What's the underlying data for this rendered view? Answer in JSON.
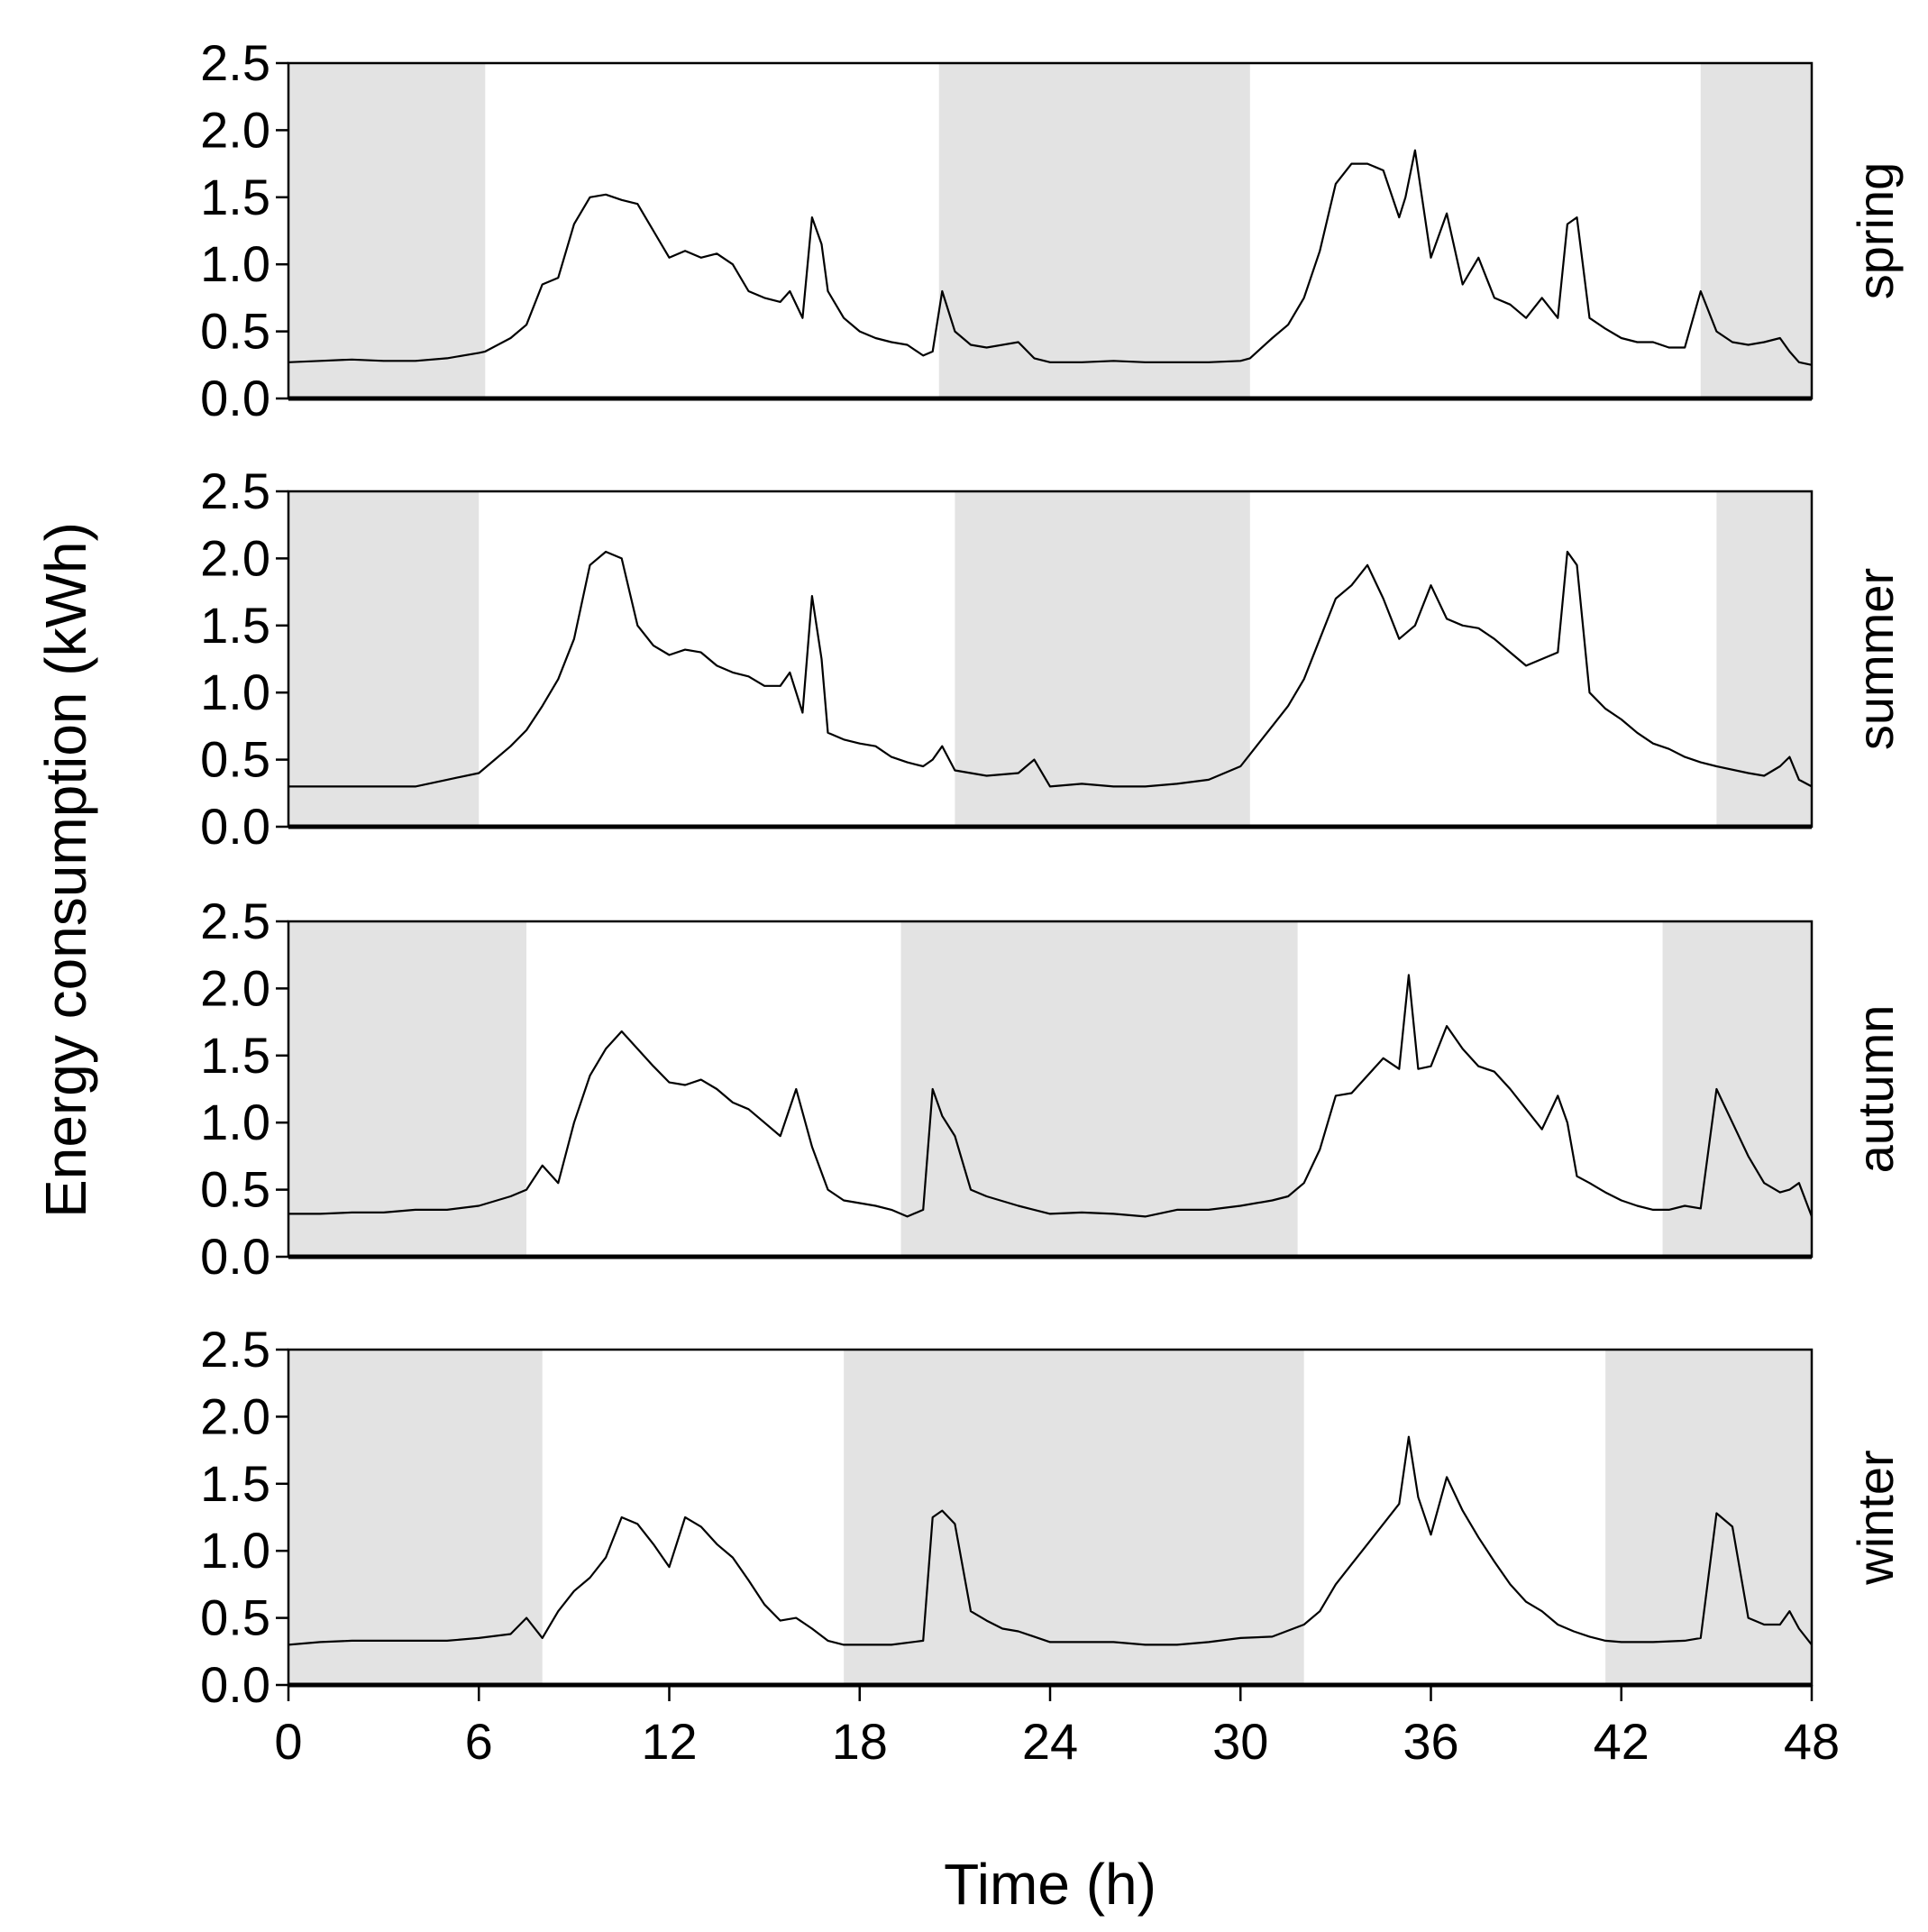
{
  "chart_data": {
    "type": "line",
    "xlabel": "Time (h)",
    "ylabel": "Energy consumption (kWh)",
    "xlim": [
      0,
      48
    ],
    "ylim": [
      0,
      2.5
    ],
    "x_ticks": [
      "0",
      "6",
      "12",
      "18",
      "24",
      "30",
      "36",
      "42",
      "48"
    ],
    "y_ticks": [
      "0.0",
      "0.5",
      "1.0",
      "1.5",
      "2.0",
      "2.5"
    ],
    "colors": {
      "line": "#000000",
      "night_shade": "#e3e3e3",
      "background": "#ffffff"
    },
    "panels": [
      {
        "name": "spring",
        "night_periods": [
          [
            0,
            6.2
          ],
          [
            20.5,
            30.3
          ],
          [
            44.5,
            48
          ]
        ],
        "series": [
          {
            "name": "spring",
            "x": [
              0,
              1,
              2,
              3,
              4,
              5,
              6,
              6.2,
              7,
              7.5,
              8,
              8.5,
              9,
              9.5,
              10,
              10.5,
              11,
              11.5,
              12,
              12.5,
              13,
              13.5,
              14,
              14.5,
              15,
              15.5,
              15.8,
              16.2,
              16.5,
              16.8,
              17,
              17.5,
              18,
              18.5,
              19,
              19.5,
              20,
              20.3,
              20.6,
              21,
              21.5,
              22,
              23,
              23.5,
              24,
              25,
              26,
              27,
              28,
              29,
              30,
              30.3,
              31,
              31.5,
              32,
              32.5,
              33,
              33.5,
              34,
              34.5,
              35,
              35.2,
              35.5,
              36,
              36.5,
              37,
              37.5,
              38,
              38.5,
              39,
              39.5,
              40,
              40.3,
              40.6,
              41,
              41.5,
              42,
              42.5,
              43,
              43.5,
              44,
              44.5,
              45,
              45.5,
              46,
              46.5,
              47,
              47.3,
              47.6,
              48
            ],
            "values": [
              0.27,
              0.28,
              0.29,
              0.28,
              0.28,
              0.3,
              0.34,
              0.35,
              0.45,
              0.55,
              0.85,
              0.9,
              1.3,
              1.5,
              1.52,
              1.48,
              1.45,
              1.25,
              1.05,
              1.1,
              1.05,
              1.08,
              1.0,
              0.8,
              0.75,
              0.72,
              0.8,
              0.6,
              1.35,
              1.15,
              0.8,
              0.6,
              0.5,
              0.45,
              0.42,
              0.4,
              0.32,
              0.35,
              0.8,
              0.5,
              0.4,
              0.38,
              0.42,
              0.3,
              0.27,
              0.27,
              0.28,
              0.27,
              0.27,
              0.27,
              0.28,
              0.3,
              0.45,
              0.55,
              0.75,
              1.1,
              1.6,
              1.75,
              1.75,
              1.7,
              1.35,
              1.5,
              1.85,
              1.05,
              1.38,
              0.85,
              1.05,
              0.75,
              0.7,
              0.6,
              0.75,
              0.6,
              1.3,
              1.35,
              0.6,
              0.52,
              0.45,
              0.42,
              0.42,
              0.38,
              0.38,
              0.8,
              0.5,
              0.42,
              0.4,
              0.42,
              0.45,
              0.35,
              0.27,
              0.25
            ]
          }
        ]
      },
      {
        "name": "summer",
        "night_periods": [
          [
            0,
            6
          ],
          [
            21,
            30.3
          ],
          [
            45,
            48
          ]
        ],
        "series": [
          {
            "name": "summer",
            "x": [
              0,
              1,
              2,
              3,
              4,
              5,
              6,
              6.5,
              7,
              7.5,
              8,
              8.5,
              9,
              9.5,
              10,
              10.5,
              11,
              11.5,
              12,
              12.5,
              13,
              13.5,
              14,
              14.5,
              15,
              15.5,
              15.8,
              16.2,
              16.5,
              16.8,
              17,
              17.5,
              18,
              18.5,
              19,
              19.5,
              20,
              20.3,
              20.6,
              21,
              22,
              23,
              23.5,
              24,
              25,
              26,
              27,
              28,
              29,
              30,
              30.5,
              31,
              31.5,
              32,
              32.5,
              33,
              33.5,
              34,
              34.5,
              35,
              35.5,
              36,
              36.5,
              37,
              37.5,
              38,
              38.5,
              39,
              39.5,
              40,
              40.3,
              40.6,
              41,
              41.5,
              42,
              42.5,
              43,
              43.5,
              44,
              44.5,
              45,
              46,
              46.5,
              47,
              47.3,
              47.6,
              48
            ],
            "values": [
              0.3,
              0.3,
              0.3,
              0.3,
              0.3,
              0.35,
              0.4,
              0.5,
              0.6,
              0.72,
              0.9,
              1.1,
              1.4,
              1.95,
              2.05,
              2.0,
              1.5,
              1.35,
              1.28,
              1.32,
              1.3,
              1.2,
              1.15,
              1.12,
              1.05,
              1.05,
              1.15,
              0.85,
              1.72,
              1.25,
              0.7,
              0.65,
              0.62,
              0.6,
              0.52,
              0.48,
              0.45,
              0.5,
              0.6,
              0.42,
              0.38,
              0.4,
              0.5,
              0.3,
              0.32,
              0.3,
              0.3,
              0.32,
              0.35,
              0.45,
              0.6,
              0.75,
              0.9,
              1.1,
              1.4,
              1.7,
              1.8,
              1.95,
              1.7,
              1.4,
              1.5,
              1.8,
              1.55,
              1.5,
              1.48,
              1.4,
              1.3,
              1.2,
              1.25,
              1.3,
              2.05,
              1.95,
              1.0,
              0.88,
              0.8,
              0.7,
              0.62,
              0.58,
              0.52,
              0.48,
              0.45,
              0.4,
              0.38,
              0.45,
              0.52,
              0.35,
              0.3
            ]
          }
        ]
      },
      {
        "name": "autumn",
        "night_periods": [
          [
            0,
            7.5
          ],
          [
            19.3,
            31.8
          ],
          [
            43.3,
            48
          ]
        ],
        "series": [
          {
            "name": "autumn",
            "x": [
              0,
              1,
              2,
              3,
              4,
              5,
              6,
              7,
              7.5,
              8,
              8.5,
              9,
              9.5,
              10,
              10.5,
              11,
              11.5,
              12,
              12.5,
              13,
              13.5,
              14,
              14.5,
              15,
              15.5,
              16,
              16.5,
              17,
              17.5,
              18,
              18.5,
              19,
              19.5,
              20,
              20.3,
              20.6,
              21,
              21.5,
              22,
              23,
              24,
              25,
              26,
              27,
              28,
              29,
              30,
              31,
              31.5,
              32,
              32.5,
              33,
              33.5,
              34,
              34.5,
              35,
              35.3,
              35.6,
              36,
              36.5,
              37,
              37.5,
              38,
              38.5,
              39,
              39.5,
              40,
              40.3,
              40.6,
              41,
              41.5,
              42,
              42.5,
              43,
              43.5,
              44,
              44.5,
              45,
              45.5,
              46,
              46.5,
              47,
              47.3,
              47.6,
              48
            ],
            "values": [
              0.32,
              0.32,
              0.33,
              0.33,
              0.35,
              0.35,
              0.38,
              0.45,
              0.5,
              0.68,
              0.55,
              1.0,
              1.35,
              1.55,
              1.68,
              1.55,
              1.42,
              1.3,
              1.28,
              1.32,
              1.25,
              1.15,
              1.1,
              1.0,
              0.9,
              1.25,
              0.82,
              0.5,
              0.42,
              0.4,
              0.38,
              0.35,
              0.3,
              0.35,
              1.25,
              1.05,
              0.9,
              0.5,
              0.45,
              0.38,
              0.32,
              0.33,
              0.32,
              0.3,
              0.35,
              0.35,
              0.38,
              0.42,
              0.45,
              0.55,
              0.8,
              1.2,
              1.22,
              1.35,
              1.48,
              1.4,
              2.1,
              1.4,
              1.42,
              1.72,
              1.55,
              1.42,
              1.38,
              1.25,
              1.1,
              0.95,
              1.2,
              1.0,
              0.6,
              0.55,
              0.48,
              0.42,
              0.38,
              0.35,
              0.35,
              0.38,
              0.36,
              1.25,
              1.0,
              0.75,
              0.55,
              0.48,
              0.5,
              0.55,
              0.3
            ]
          }
        ]
      },
      {
        "name": "winter",
        "night_periods": [
          [
            0,
            8
          ],
          [
            17.5,
            32
          ],
          [
            41.5,
            48
          ]
        ],
        "series": [
          {
            "name": "winter",
            "x": [
              0,
              1,
              2,
              3,
              4,
              5,
              6,
              7,
              7.5,
              8,
              8.5,
              9,
              9.5,
              10,
              10.5,
              11,
              11.5,
              12,
              12.5,
              13,
              13.5,
              14,
              14.5,
              15,
              15.5,
              16,
              16.5,
              17,
              17.5,
              18,
              19,
              20,
              20.3,
              20.6,
              21,
              21.5,
              22,
              22.5,
              23,
              24,
              25,
              26,
              27,
              28,
              29,
              30,
              31,
              32,
              32.5,
              33,
              33.5,
              34,
              34.5,
              35,
              35.3,
              35.6,
              36,
              36.5,
              37,
              37.5,
              38,
              38.5,
              39,
              39.5,
              40,
              40.5,
              41,
              41.5,
              42,
              43,
              44,
              44.5,
              45,
              45.5,
              46,
              46.5,
              47,
              47.3,
              47.6,
              48
            ],
            "values": [
              0.3,
              0.32,
              0.33,
              0.33,
              0.33,
              0.33,
              0.35,
              0.38,
              0.5,
              0.35,
              0.55,
              0.7,
              0.8,
              0.95,
              1.25,
              1.2,
              1.05,
              0.88,
              1.25,
              1.18,
              1.05,
              0.95,
              0.78,
              0.6,
              0.48,
              0.5,
              0.42,
              0.33,
              0.3,
              0.3,
              0.3,
              0.33,
              1.25,
              1.3,
              1.2,
              0.55,
              0.48,
              0.42,
              0.4,
              0.32,
              0.32,
              0.32,
              0.3,
              0.3,
              0.32,
              0.35,
              0.36,
              0.45,
              0.55,
              0.75,
              0.9,
              1.05,
              1.2,
              1.35,
              1.85,
              1.4,
              1.12,
              1.55,
              1.3,
              1.1,
              0.92,
              0.75,
              0.62,
              0.55,
              0.45,
              0.4,
              0.36,
              0.33,
              0.32,
              0.32,
              0.33,
              0.35,
              1.28,
              1.18,
              0.5,
              0.45,
              0.45,
              0.55,
              0.42,
              0.3
            ]
          }
        ]
      }
    ]
  }
}
